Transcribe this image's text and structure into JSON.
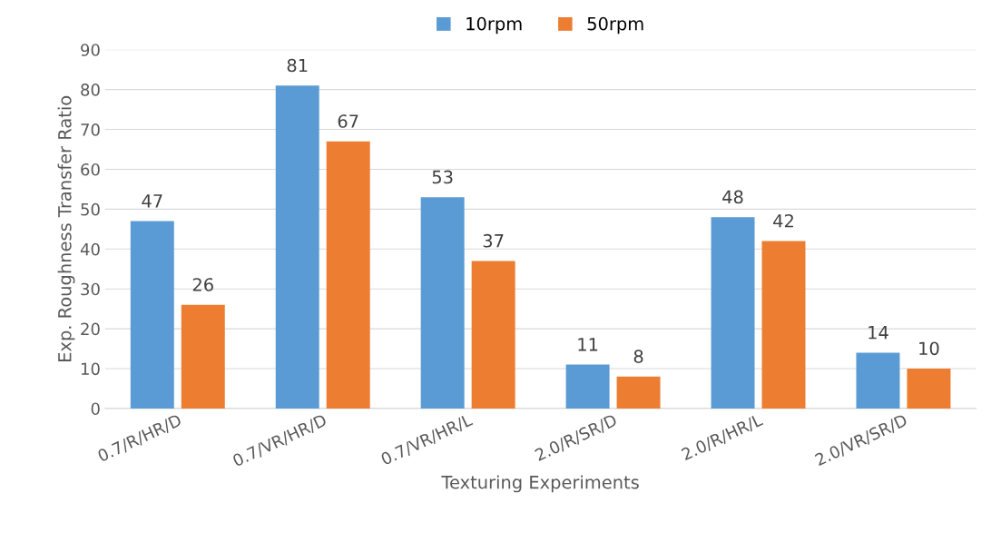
{
  "chart_data": {
    "type": "bar",
    "xlabel": "Texturing Experiments",
    "ylabel": "Exp. Roughness Transfer Ratio",
    "categories": [
      "0.7/R/HR/D",
      "0.7/VR/HR/D",
      "0.7/VR/HR/L",
      "2.0/R/SR/D",
      "2.0/R/HR/L",
      "2.0/VR/SR/D"
    ],
    "series": [
      {
        "name": "10rpm",
        "color": "#5b9bd5",
        "values": [
          47,
          81,
          53,
          11,
          48,
          14
        ]
      },
      {
        "name": "50rpm",
        "color": "#ed7d31",
        "values": [
          26,
          67,
          37,
          8,
          42,
          10
        ]
      }
    ],
    "ylim": [
      0,
      90
    ],
    "yticks": [
      0,
      10,
      20,
      30,
      40,
      50,
      60,
      70,
      80,
      90
    ],
    "grid": "y",
    "legend": "top",
    "data_labels": true
  }
}
